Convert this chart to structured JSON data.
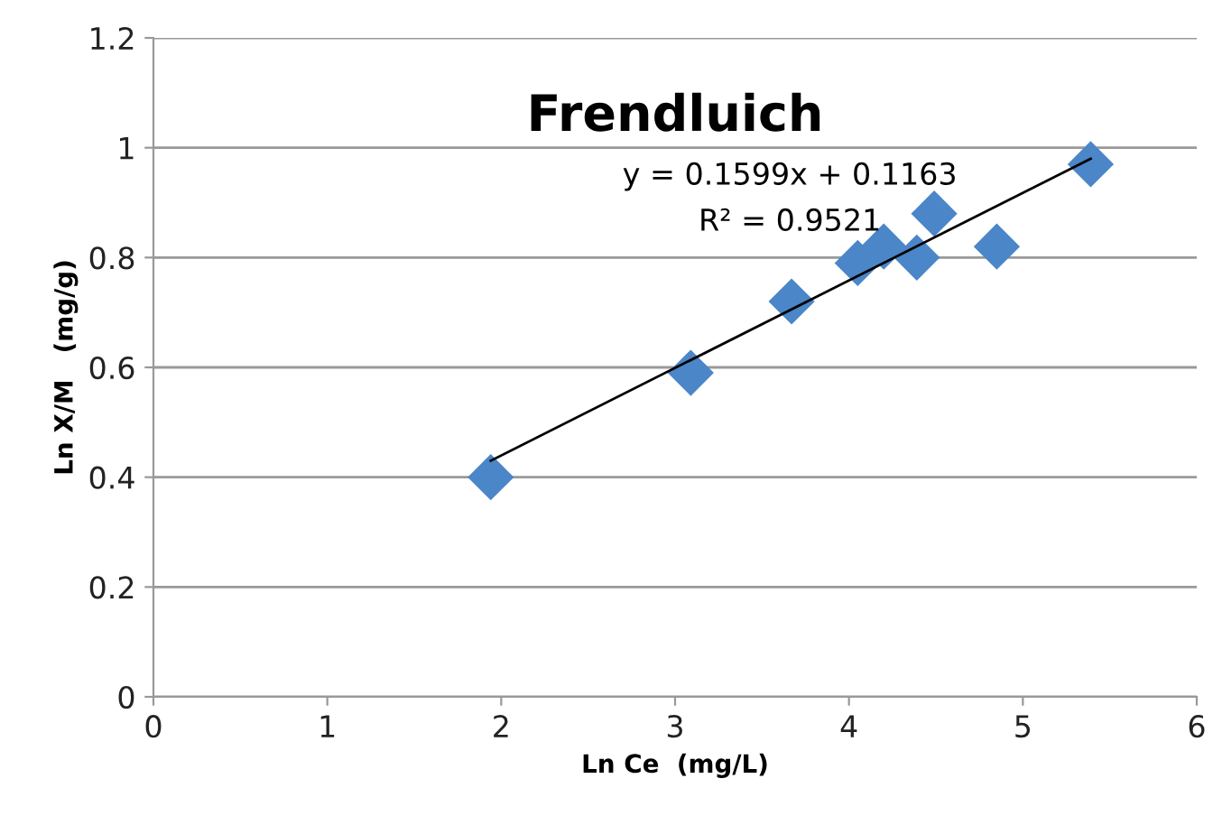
{
  "chart_data": {
    "type": "scatter",
    "title": "Frendluich",
    "xlabel": "Ln Ce  (mg/L)",
    "ylabel": "Ln X/M   (mg/g)",
    "annotations": [
      "y = 0.1599x + 0.1163",
      "R² = 0.9521"
    ],
    "xlim": [
      0,
      6
    ],
    "xticks": [
      0,
      1,
      2,
      3,
      4,
      5,
      6
    ],
    "ylim": [
      0,
      1.2
    ],
    "yticks": [
      0,
      0.2,
      0.4,
      0.6,
      0.8,
      1,
      1.2
    ],
    "grid": "y",
    "marker": "diamond",
    "series": [
      {
        "color": "#4a86c8",
        "x": [
          1.94,
          3.09,
          3.67,
          4.05,
          4.2,
          4.39,
          4.49,
          4.85,
          5.39
        ],
        "values": [
          0.4,
          0.59,
          0.72,
          0.79,
          0.82,
          0.8,
          0.88,
          0.82,
          0.97
        ]
      },
      {
        "type": "line",
        "color": "#000000",
        "x": [
          1.94,
          5.39
        ],
        "values": [
          0.43,
          0.98
        ],
        "marker": "none",
        "line_style": "solid"
      }
    ]
  }
}
